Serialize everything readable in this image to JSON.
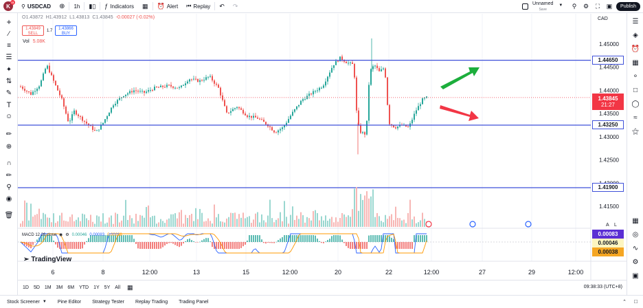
{
  "header": {
    "logo_letter": "K",
    "logo_badge": "11",
    "symbol": "USDCAD",
    "timeframe": "1h",
    "indicators_label": "Indicators",
    "alert_label": "Alert",
    "replay_label": "Replay",
    "layout_name": "Unnamed",
    "layout_status": "Save",
    "publish_label": "Publish"
  },
  "hud": {
    "open": "O1.43872",
    "high": "H1.43912",
    "low": "L1.43813",
    "close": "C1.43845",
    "change": "-0.00027 (-0.02%)",
    "sell_price": "1.43849",
    "sell_label": "SELL",
    "spread": "1.7",
    "buy_price": "1.43866",
    "buy_label": "BUY",
    "vol_label": "Vol",
    "vol_value": "5.08K",
    "currency": "CAD"
  },
  "macd": {
    "label": "MACD 12 26 close",
    "value1": "0.00046",
    "value2": "0.00083",
    "value3": "0.00038"
  },
  "price_axis": {
    "labels": [
      "1.45000",
      "1.44500",
      "1.44000",
      "1.43500",
      "1.43000",
      "1.42500",
      "1.42000",
      "1.41500"
    ],
    "tag_upper": "1.44650",
    "tag_current": "1.43845",
    "tag_countdown": "21:27",
    "tag_middle": "1.43250",
    "tag_lower": "1.41900",
    "macd_tag1": "0.00083",
    "macd_tag2": "0.00046",
    "macd_tag3": "0.00038",
    "scale_letters": [
      "A",
      "L"
    ]
  },
  "time_axis": {
    "labels": [
      "6",
      "8",
      "12:00",
      "13",
      "15",
      "12:00",
      "20",
      "22",
      "12:00",
      "27",
      "29",
      "12:00"
    ]
  },
  "brand": "TradingView",
  "ranges": [
    "1D",
    "5D",
    "1M",
    "3M",
    "6M",
    "YTD",
    "1Y",
    "5Y",
    "All"
  ],
  "clock": "09:38:33 (UTC+8)",
  "footer_tabs": [
    "Stock Screener",
    "Pine Editor",
    "Strategy Tester",
    "Replay Trading",
    "Trading Panel"
  ],
  "colors": {
    "up": "#26a69a",
    "down": "#ef5350",
    "level_line": "#3f51d9",
    "current_tag": "#f23645",
    "macd_blue": "#2962ff",
    "macd_orange": "#ff9800",
    "macd_tag1": "#5b2fd4",
    "macd_tag2": "#fdf5c0",
    "macd_tag3": "#f5a623",
    "arrow_up": "#1cae3c",
    "arrow_down": "#f23645"
  },
  "icons": {
    "left": [
      "crosshair-icon",
      "trendline-icon",
      "fib-icon",
      "pattern-icon",
      "measure-icon",
      "brush-icon",
      "text-icon",
      "emoji-icon",
      "ruler-icon",
      "zoom-icon",
      "magnet-icon",
      "lock-draw-icon",
      "lock-icon",
      "eye-icon",
      "trash-icon"
    ],
    "right": [
      "watchlist-icon",
      "layers-icon",
      "alerts-icon",
      "calendar-icon",
      "ideas-icon",
      "chat-icon",
      "help-icon",
      "signal-icon",
      "bell-icon",
      "grid-icon",
      "target-icon"
    ]
  }
}
